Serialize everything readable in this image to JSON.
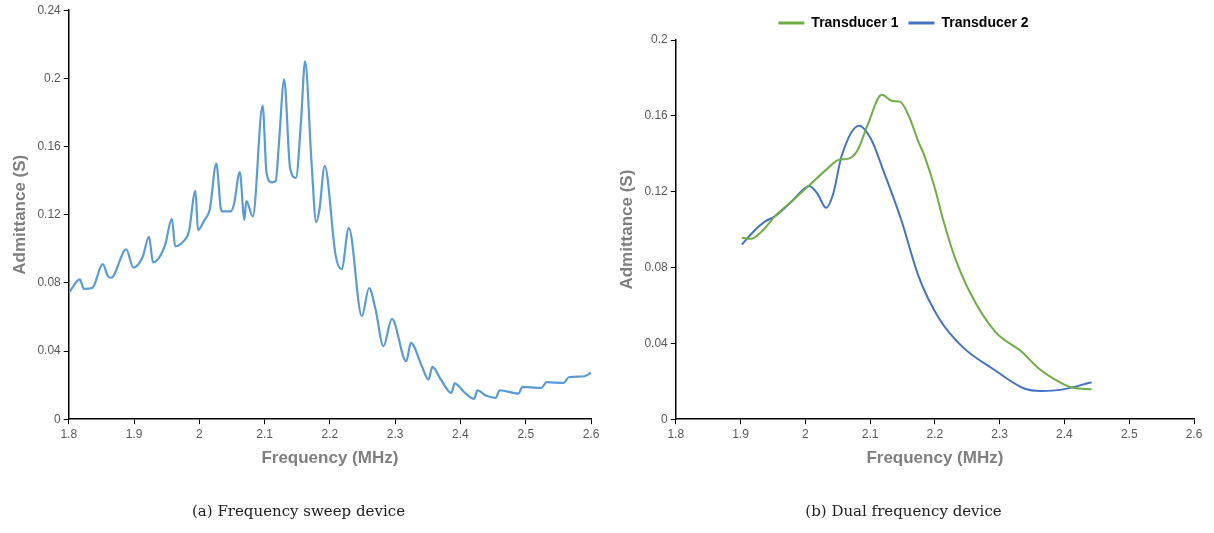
{
  "chart_data": [
    {
      "type": "line",
      "title": "(a) Frequency sweep device",
      "xlabel": "Frequency (MHz)",
      "ylabel": "Admittance (S)",
      "xlim": [
        1.8,
        2.6
      ],
      "xticks": [
        1.8,
        1.9,
        2,
        2.1,
        2.2,
        2.3,
        2.4,
        2.5,
        2.6
      ],
      "ylim": [
        0,
        0.24
      ],
      "yticks": [
        0,
        0.04,
        0.08,
        0.12,
        0.16,
        0.2,
        0.24
      ],
      "grid": false,
      "legend": false,
      "marker": "none",
      "line_style": "solid",
      "series": [
        {
          "color": "#5b9bd5",
          "x": [
            1.8,
            1.817,
            1.823,
            1.836,
            1.852,
            1.86,
            1.865,
            1.888,
            1.899,
            1.913,
            1.923,
            1.929,
            1.947,
            1.958,
            1.963,
            1.976,
            1.984,
            1.994,
            1.998,
            2.008,
            2.016,
            2.026,
            2.034,
            2.048,
            2.053,
            2.062,
            2.069,
            2.072,
            2.082,
            2.097,
            2.103,
            2.111,
            2.117,
            2.122,
            2.13,
            2.139,
            2.148,
            2.156,
            2.162,
            2.172,
            2.179,
            2.184,
            2.192,
            2.209,
            2.218,
            2.229,
            2.249,
            2.26,
            2.27,
            2.282,
            2.295,
            2.317,
            2.324,
            2.341,
            2.351,
            2.357,
            2.37,
            2.386,
            2.391,
            2.407,
            2.421,
            2.426,
            2.439,
            2.454,
            2.46,
            2.489,
            2.495,
            2.524,
            2.532,
            2.558,
            2.566,
            2.59,
            2.6
          ],
          "values": [
            0.074,
            0.082,
            0.0765,
            0.077,
            0.091,
            0.084,
            0.083,
            0.0996,
            0.089,
            0.095,
            0.107,
            0.092,
            0.1015,
            0.1175,
            0.1015,
            0.1045,
            0.11,
            0.134,
            0.111,
            0.117,
            0.123,
            0.15,
            0.122,
            0.122,
            0.126,
            0.145,
            0.117,
            0.128,
            0.119,
            0.184,
            0.1445,
            0.139,
            0.1397,
            0.162,
            0.1994,
            0.1475,
            0.1416,
            0.176,
            0.21,
            0.15,
            0.1156,
            0.123,
            0.1485,
            0.0957,
            0.088,
            0.1123,
            0.0604,
            0.077,
            0.0644,
            0.0428,
            0.0589,
            0.034,
            0.0448,
            0.031,
            0.0233,
            0.0307,
            0.0233,
            0.0154,
            0.021,
            0.0154,
            0.0119,
            0.017,
            0.0139,
            0.0125,
            0.017,
            0.015,
            0.019,
            0.0184,
            0.0217,
            0.0213,
            0.0246,
            0.0252,
            0.0272
          ]
        }
      ]
    },
    {
      "type": "line",
      "title": "(b) Dual frequency device",
      "xlabel": "Frequency (MHz)",
      "ylabel": "Admittance (S)",
      "xlim": [
        1.8,
        2.6
      ],
      "xticks": [
        1.8,
        1.9,
        2,
        2.1,
        2.2,
        2.3,
        2.4,
        2.5,
        2.6
      ],
      "ylim": [
        0,
        0.2
      ],
      "yticks": [
        0,
        0.04,
        0.08,
        0.12,
        0.16,
        0.2
      ],
      "grid": false,
      "legend": "top",
      "marker": "none",
      "line_style": "solid",
      "series": [
        {
          "name": "Transducer 1",
          "color": "#70ad47",
          "x": [
            1.902,
            1.917,
            1.932,
            1.953,
            1.98,
            2.006,
            2.032,
            2.053,
            2.065,
            2.08,
            2.096,
            2.118,
            2.135,
            2.146,
            2.159,
            2.175,
            2.183,
            2.201,
            2.212,
            2.23,
            2.254,
            2.293,
            2.335,
            2.359,
            2.391,
            2.412,
            2.442
          ],
          "values": [
            0.0957,
            0.0952,
            0.0988,
            0.107,
            0.1152,
            0.1233,
            0.1315,
            0.137,
            0.1373,
            0.1415,
            0.155,
            0.1711,
            0.1678,
            0.1675,
            0.1606,
            0.146,
            0.1397,
            0.1206,
            0.1061,
            0.0861,
            0.067,
            0.0462,
            0.0353,
            0.0271,
            0.0198,
            0.0167,
            0.0158
          ]
        },
        {
          "name": "Transducer 2",
          "color": "#4472c4",
          "x": [
            1.902,
            1.922,
            1.938,
            1.953,
            1.98,
            1.998,
            2.006,
            2.019,
            2.032,
            2.043,
            2.056,
            2.083,
            2.101,
            2.122,
            2.148,
            2.175,
            2.206,
            2.243,
            2.291,
            2.338,
            2.364,
            2.396,
            2.442
          ],
          "values": [
            0.0921,
            0.0997,
            0.1043,
            0.107,
            0.1152,
            0.1215,
            0.123,
            0.1188,
            0.1115,
            0.1188,
            0.1388,
            0.1548,
            0.148,
            0.1297,
            0.1052,
            0.0752,
            0.0534,
            0.038,
            0.0262,
            0.0162,
            0.0149,
            0.0156,
            0.0195
          ]
        }
      ]
    }
  ]
}
